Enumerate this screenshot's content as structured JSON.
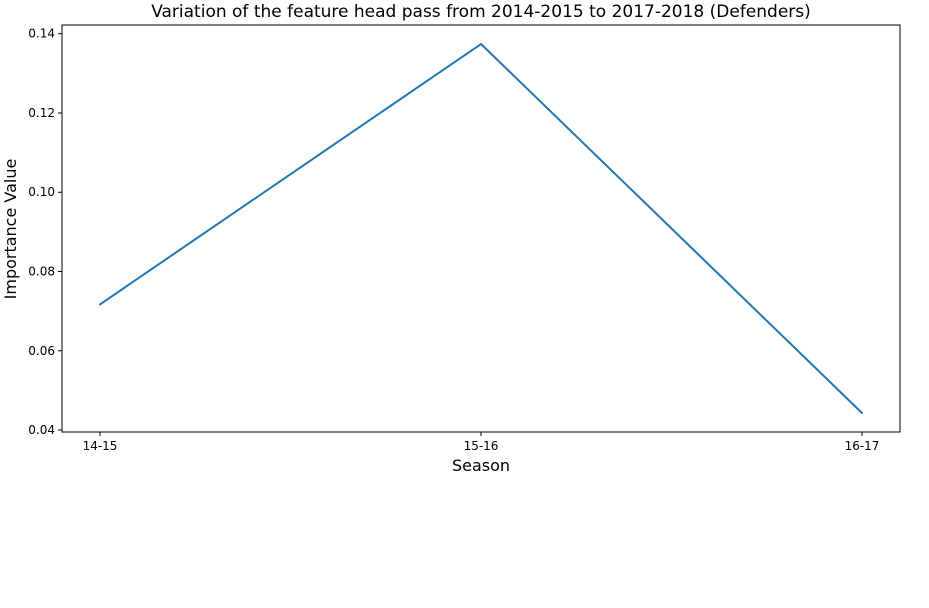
{
  "chart_data": {
    "type": "line",
    "title": "Variation of the feature head pass from 2014-2015 to 2017-2018 (Defenders)",
    "xlabel": "Season",
    "ylabel": "Importance Value",
    "categories": [
      "14-15",
      "15-16",
      "16-17"
    ],
    "series": [
      {
        "values": [
          0.0717,
          0.1374,
          0.0443
        ],
        "color": "#1f77b4"
      }
    ],
    "ylim": [
      0.0395,
      0.1422
    ],
    "yticks": [
      0.04,
      0.06,
      0.08,
      0.1,
      0.12,
      0.14
    ],
    "ytick_labels": [
      "0.04",
      "0.06",
      "0.08",
      "0.10",
      "0.12",
      "0.14"
    ],
    "grid": false,
    "legend": "none"
  }
}
